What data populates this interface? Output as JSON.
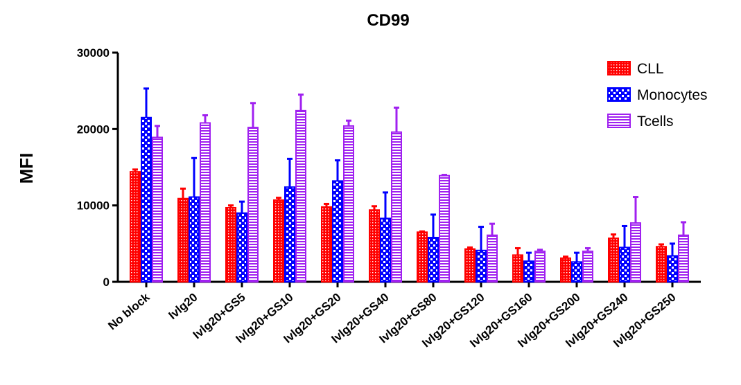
{
  "chart_data": {
    "type": "bar",
    "title": "CD99",
    "xlabel": "",
    "ylabel": "MFI",
    "ylim": [
      0,
      30000
    ],
    "yticks": [
      0,
      10000,
      20000,
      30000
    ],
    "categories": [
      "No block",
      "Ivlg20",
      "Ivlg20+GS5",
      "Ivlg20+GS10",
      "Ivlg20+GS20",
      "Ivlg20+GS40",
      "Ivlg20+GS80",
      "Ivlg20+GS120",
      "Ivlg20+GS160",
      "Ivlg20+GS200",
      "Ivlg20+GS240",
      "Ivlg20+GS250"
    ],
    "series": [
      {
        "name": "CLL",
        "color": "#ff0000",
        "pattern": "dots",
        "values": [
          14400,
          10900,
          9700,
          10700,
          9800,
          9400,
          6500,
          4300,
          3500,
          3100,
          5700,
          4600
        ],
        "error_upper": [
          14700,
          12200,
          10000,
          11000,
          10200,
          9900,
          6600,
          4500,
          4400,
          3300,
          6200,
          4900
        ]
      },
      {
        "name": "Monocytes",
        "color": "#0000ff",
        "pattern": "checker",
        "values": [
          21500,
          11100,
          9000,
          12400,
          13200,
          8300,
          5800,
          4100,
          2700,
          2600,
          4500,
          3400
        ],
        "error_upper": [
          25300,
          16200,
          10500,
          16100,
          15900,
          11700,
          8800,
          7200,
          3800,
          3800,
          7300,
          5000
        ]
      },
      {
        "name": "Tcells",
        "color": "#a020f0",
        "pattern": "hstripes",
        "values": [
          18900,
          20800,
          20200,
          22400,
          20400,
          19600,
          13900,
          6100,
          4000,
          4000,
          7700,
          6100
        ],
        "error_upper": [
          20400,
          21800,
          23400,
          24500,
          21100,
          22800,
          14000,
          7600,
          4200,
          4400,
          11100,
          7800
        ]
      }
    ],
    "legend_position": "top-right",
    "grid": false
  }
}
